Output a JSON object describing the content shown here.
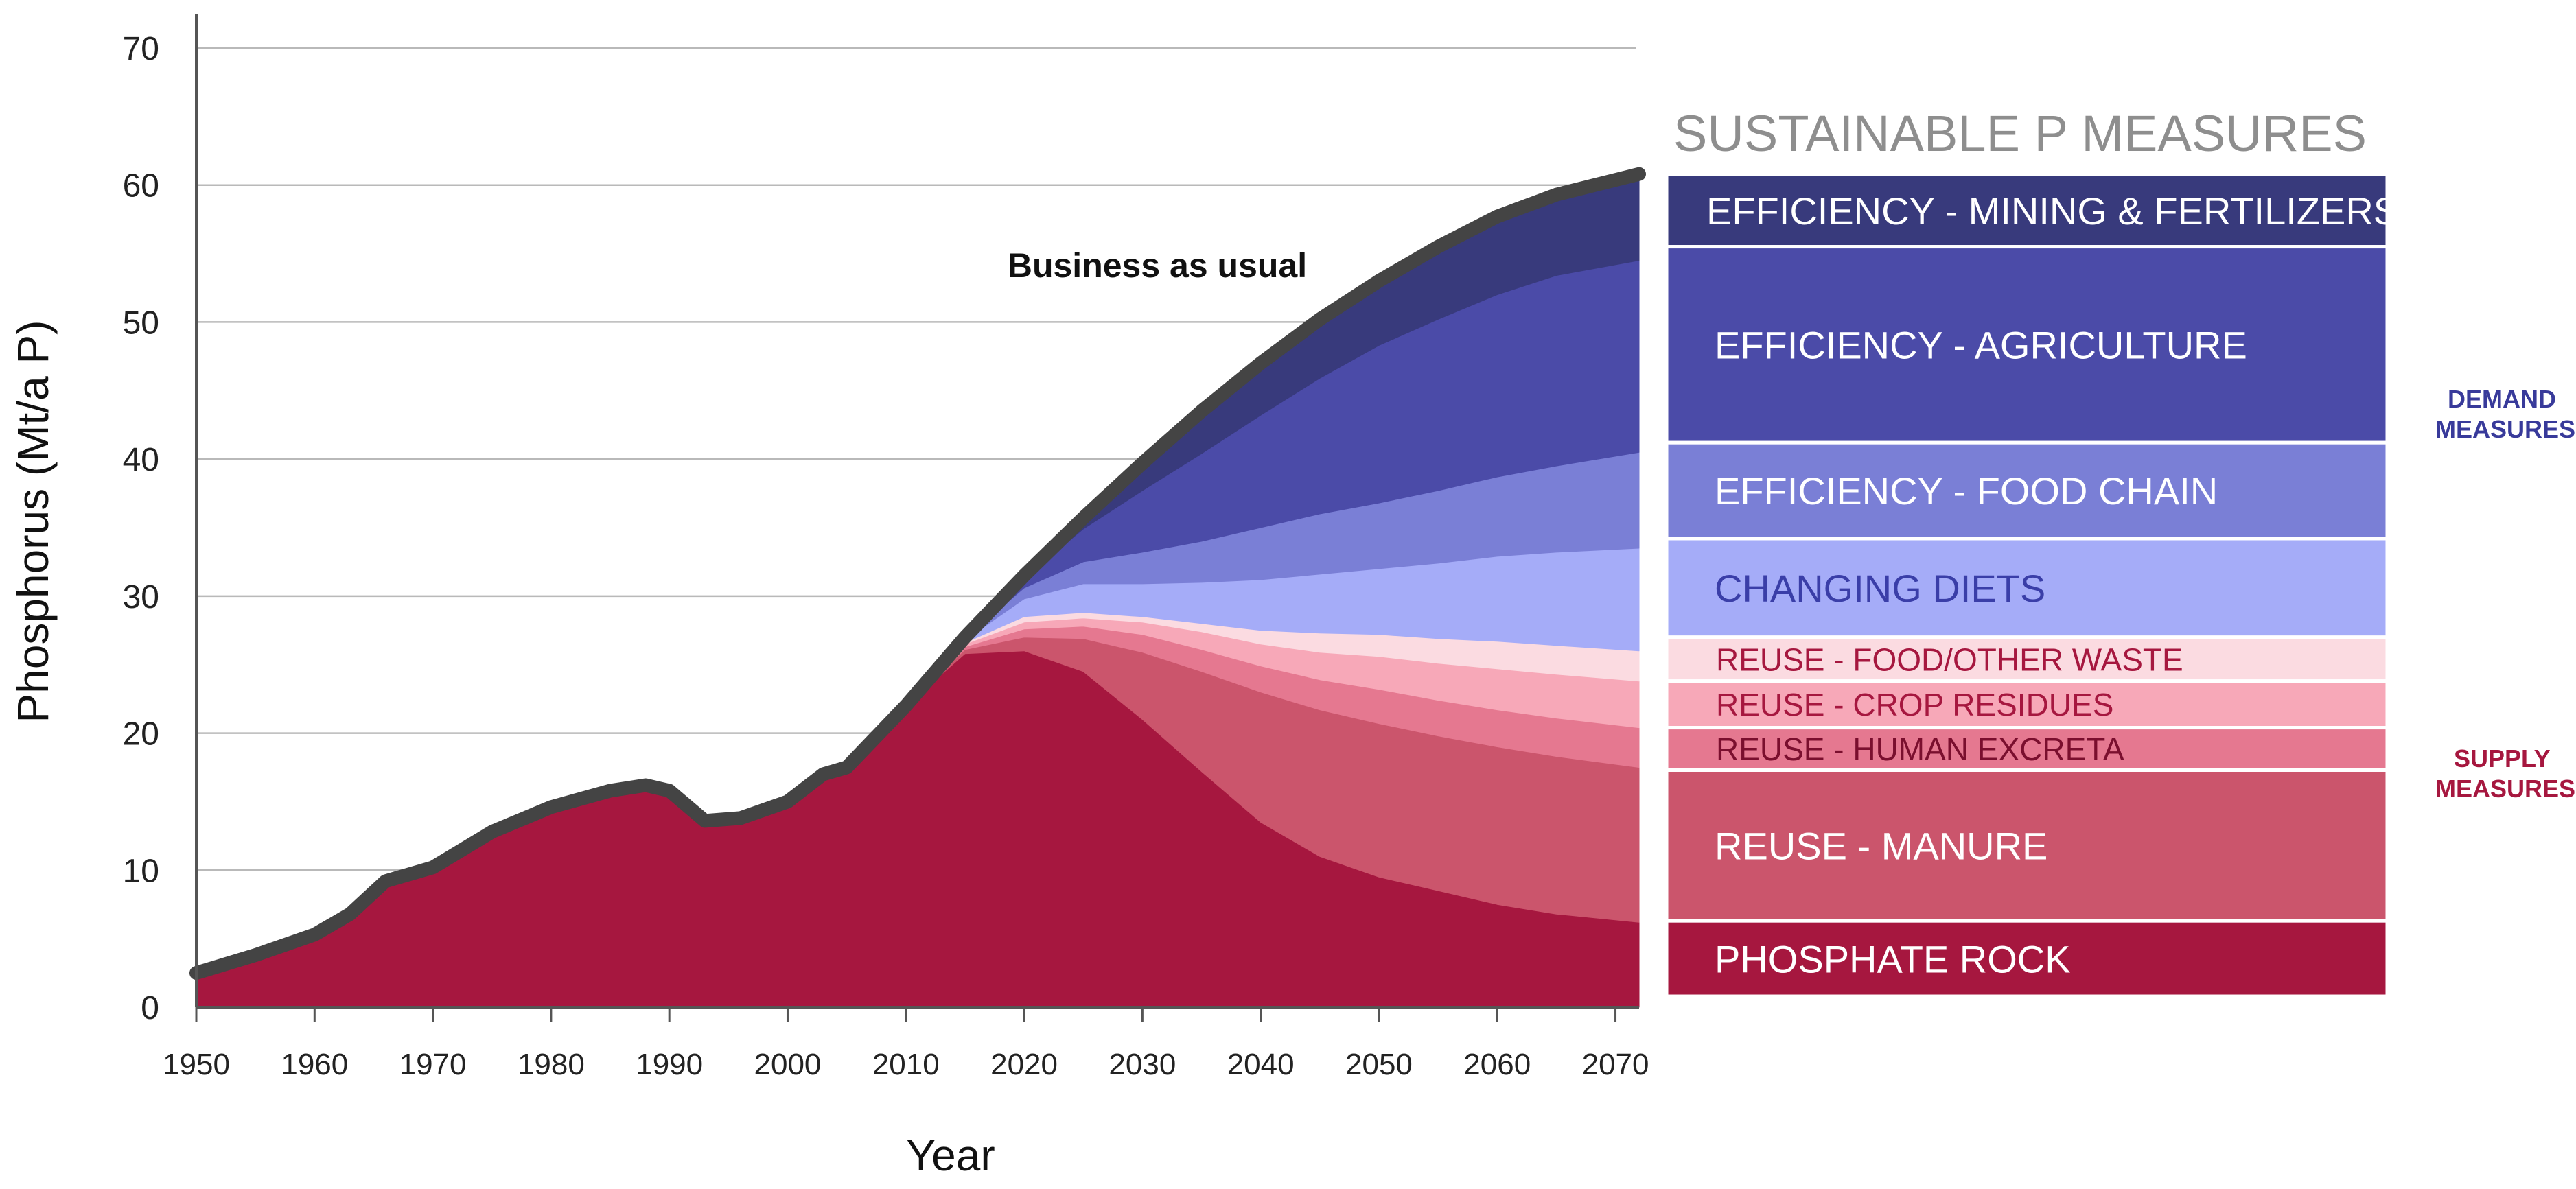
{
  "chart_data": {
    "type": "area",
    "xlabel": "Year",
    "ylabel": "Phosphorus (Mt/a P)",
    "xlim": [
      1950,
      2072
    ],
    "ylim": [
      0,
      70
    ],
    "xticks": [
      1950,
      1960,
      1970,
      1980,
      1990,
      2000,
      2010,
      2020,
      2030,
      2040,
      2050,
      2060,
      2070
    ],
    "yticks": [
      0,
      10,
      20,
      30,
      40,
      50,
      60,
      70
    ],
    "grid": "horizontal",
    "annotation": "Business as usual",
    "legend_title": "SUSTAINABLE  P  MEASURES",
    "group_labels": {
      "demand": [
        "DEMAND",
        "MEASURES"
      ],
      "supply": [
        "SUPPLY",
        "MEASURES"
      ]
    },
    "colors": {
      "mining": "#383a7c",
      "agriculture": "#4b4ba8",
      "foodchain": "#7a7fd6",
      "diets": "#a5acf8",
      "foodwaste": "#fbdbe1",
      "crop": "#f7a8b8",
      "excreta": "#e57890",
      "manure": "#cb556c",
      "rock": "#a6173f",
      "bau_line": "#444444",
      "demand_label": "#383a9a",
      "supply_label": "#a6173f"
    },
    "x": [
      1950,
      1955,
      1960,
      1963,
      1966,
      1970,
      1975,
      1980,
      1985,
      1988,
      1990,
      1993,
      1996,
      2000,
      2003,
      2005,
      2010,
      2015,
      2020,
      2025,
      2030,
      2035,
      2040,
      2045,
      2050,
      2055,
      2060,
      2065,
      2072
    ],
    "business_as_usual": [
      2.5,
      3.8,
      5.3,
      6.8,
      9.2,
      10.2,
      12.8,
      14.6,
      15.8,
      16.2,
      15.8,
      13.6,
      13.8,
      15.0,
      17.0,
      17.5,
      22.0,
      27.0,
      31.5,
      35.7,
      39.7,
      43.5,
      47.0,
      50.2,
      53.0,
      55.5,
      57.7,
      59.3,
      60.8
    ],
    "series": [
      {
        "key": "rock",
        "name": "PHOSPHATE ROCK",
        "values": [
          2.5,
          3.8,
          5.3,
          6.8,
          9.2,
          10.2,
          12.8,
          14.6,
          15.8,
          16.2,
          15.8,
          13.6,
          13.8,
          15.0,
          17.0,
          17.5,
          22.0,
          25.8,
          26.0,
          24.5,
          21.0,
          17.2,
          13.5,
          11.0,
          9.5,
          8.5,
          7.5,
          6.8,
          6.2
        ]
      },
      {
        "key": "manure",
        "name": "REUSE - MANURE",
        "values": [
          0,
          0,
          0,
          0,
          0,
          0,
          0,
          0,
          0,
          0,
          0,
          0,
          0,
          0,
          0,
          0,
          0,
          0.3,
          1.0,
          2.4,
          4.9,
          7.3,
          9.5,
          10.7,
          11.2,
          11.3,
          11.5,
          11.5,
          11.3
        ]
      },
      {
        "key": "excreta",
        "name": "REUSE - HUMAN EXCRETA",
        "values": [
          0,
          0,
          0,
          0,
          0,
          0,
          0,
          0,
          0,
          0,
          0,
          0,
          0,
          0,
          0,
          0,
          0,
          0.2,
          0.6,
          0.9,
          1.3,
          1.6,
          1.9,
          2.2,
          2.5,
          2.6,
          2.7,
          2.8,
          2.9
        ]
      },
      {
        "key": "crop",
        "name": "REUSE - CROP RESIDUES",
        "values": [
          0,
          0,
          0,
          0,
          0,
          0,
          0,
          0,
          0,
          0,
          0,
          0,
          0,
          0,
          0,
          0,
          0,
          0.2,
          0.5,
          0.6,
          0.9,
          1.3,
          1.6,
          2.0,
          2.4,
          2.7,
          3.0,
          3.2,
          3.4
        ]
      },
      {
        "key": "foodwaste",
        "name": "REUSE - FOOD/OTHER WASTE",
        "values": [
          0,
          0,
          0,
          0,
          0,
          0,
          0,
          0,
          0,
          0,
          0,
          0,
          0,
          0,
          0,
          0,
          0,
          0.1,
          0.4,
          0.4,
          0.4,
          0.6,
          1.0,
          1.4,
          1.6,
          1.8,
          2.0,
          2.1,
          2.2
        ]
      },
      {
        "key": "diets",
        "name": "CHANGING DIETS",
        "values": [
          0,
          0,
          0,
          0,
          0,
          0,
          0,
          0,
          0,
          0,
          0,
          0,
          0,
          0,
          0,
          0,
          0,
          0.2,
          1.3,
          2.1,
          2.4,
          3.0,
          3.7,
          4.3,
          4.8,
          5.5,
          6.2,
          6.8,
          7.5
        ]
      },
      {
        "key": "foodchain",
        "name": "EFFICIENCY - FOOD CHAIN",
        "values": [
          0,
          0,
          0,
          0,
          0,
          0,
          0,
          0,
          0,
          0,
          0,
          0,
          0,
          0,
          0,
          0,
          0,
          0.1,
          0.8,
          1.6,
          2.3,
          3.0,
          3.8,
          4.4,
          4.8,
          5.3,
          5.8,
          6.3,
          7.0
        ]
      },
      {
        "key": "agriculture",
        "name": "EFFICIENCY - AGRICULTURE",
        "values": [
          0,
          0,
          0,
          0,
          0,
          0,
          0,
          0,
          0,
          0,
          0,
          0,
          0,
          0,
          0,
          0,
          0,
          0.1,
          0.7,
          2.4,
          4.5,
          6.4,
          8.2,
          9.9,
          11.5,
          12.5,
          13.3,
          13.9,
          14.0
        ]
      },
      {
        "key": "mining",
        "name": "EFFICIENCY - MINING & FERTILIZERS",
        "values": [
          0,
          0,
          0,
          0,
          0,
          0,
          0,
          0,
          0,
          0,
          0,
          0,
          0,
          0,
          0,
          0,
          0,
          0,
          0.2,
          0.8,
          2.0,
          3.1,
          3.8,
          4.3,
          4.7,
          5.3,
          5.7,
          5.9,
          6.3
        ]
      }
    ],
    "legend": [
      {
        "key": "mining",
        "label": "EFFICIENCY - MINING & FERTILIZERS",
        "from": 55.5,
        "to": 60.8
      },
      {
        "key": "agriculture",
        "label": "EFFICIENCY - AGRICULTURE",
        "from": 41.2,
        "to": 55.5
      },
      {
        "key": "foodchain",
        "label": "EFFICIENCY - FOOD CHAIN",
        "from": 34.2,
        "to": 41.2
      },
      {
        "key": "diets",
        "label": "CHANGING DIETS",
        "from": 27.0,
        "to": 34.2
      },
      {
        "key": "foodwaste",
        "label": "REUSE - FOOD/OTHER WASTE",
        "from": 23.8,
        "to": 27.0
      },
      {
        "key": "crop",
        "label": "REUSE - CROP RESIDUES",
        "from": 20.4,
        "to": 23.8
      },
      {
        "key": "excreta",
        "label": "REUSE - HUMAN EXCRETA",
        "from": 17.3,
        "to": 20.4
      },
      {
        "key": "manure",
        "label": "REUSE - MANURE",
        "from": 6.3,
        "to": 17.3
      },
      {
        "key": "rock",
        "label": "PHOSPHATE ROCK",
        "from": 0.8,
        "to": 6.3
      }
    ]
  }
}
